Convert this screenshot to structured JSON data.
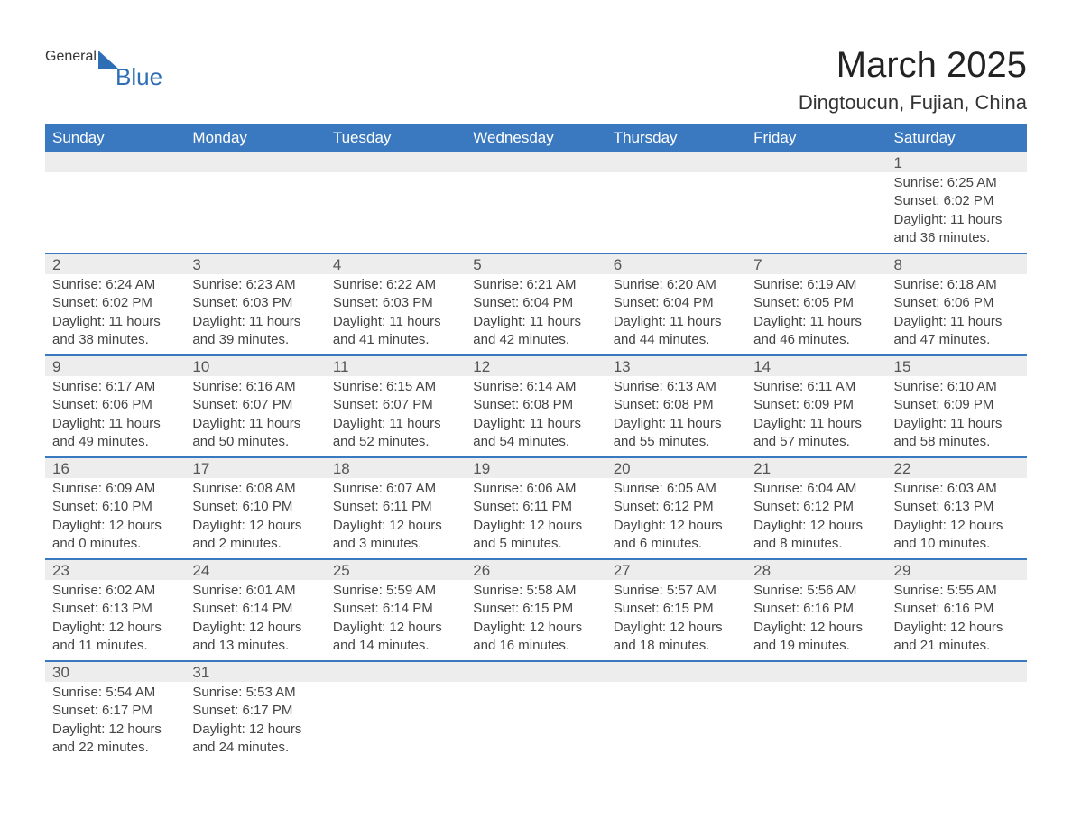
{
  "logo": {
    "general": "General",
    "blue": "Blue"
  },
  "title": {
    "month": "March 2025",
    "location": "Dingtoucun, Fujian, China"
  },
  "colors": {
    "header_bg": "#3a78c0",
    "header_text": "#ffffff",
    "numrow_bg": "#ededed",
    "border": "#3a78c0",
    "body_text": "#444444",
    "logo_blue": "#2e6eb5"
  },
  "daysOfWeek": [
    "Sunday",
    "Monday",
    "Tuesday",
    "Wednesday",
    "Thursday",
    "Friday",
    "Saturday"
  ],
  "calendar": {
    "firstDayOffset": 6,
    "days": [
      {
        "n": 1,
        "sr": "6:25 AM",
        "ss": "6:02 PM",
        "dl": "11 hours and 36 minutes."
      },
      {
        "n": 2,
        "sr": "6:24 AM",
        "ss": "6:02 PM",
        "dl": "11 hours and 38 minutes."
      },
      {
        "n": 3,
        "sr": "6:23 AM",
        "ss": "6:03 PM",
        "dl": "11 hours and 39 minutes."
      },
      {
        "n": 4,
        "sr": "6:22 AM",
        "ss": "6:03 PM",
        "dl": "11 hours and 41 minutes."
      },
      {
        "n": 5,
        "sr": "6:21 AM",
        "ss": "6:04 PM",
        "dl": "11 hours and 42 minutes."
      },
      {
        "n": 6,
        "sr": "6:20 AM",
        "ss": "6:04 PM",
        "dl": "11 hours and 44 minutes."
      },
      {
        "n": 7,
        "sr": "6:19 AM",
        "ss": "6:05 PM",
        "dl": "11 hours and 46 minutes."
      },
      {
        "n": 8,
        "sr": "6:18 AM",
        "ss": "6:06 PM",
        "dl": "11 hours and 47 minutes."
      },
      {
        "n": 9,
        "sr": "6:17 AM",
        "ss": "6:06 PM",
        "dl": "11 hours and 49 minutes."
      },
      {
        "n": 10,
        "sr": "6:16 AM",
        "ss": "6:07 PM",
        "dl": "11 hours and 50 minutes."
      },
      {
        "n": 11,
        "sr": "6:15 AM",
        "ss": "6:07 PM",
        "dl": "11 hours and 52 minutes."
      },
      {
        "n": 12,
        "sr": "6:14 AM",
        "ss": "6:08 PM",
        "dl": "11 hours and 54 minutes."
      },
      {
        "n": 13,
        "sr": "6:13 AM",
        "ss": "6:08 PM",
        "dl": "11 hours and 55 minutes."
      },
      {
        "n": 14,
        "sr": "6:11 AM",
        "ss": "6:09 PM",
        "dl": "11 hours and 57 minutes."
      },
      {
        "n": 15,
        "sr": "6:10 AM",
        "ss": "6:09 PM",
        "dl": "11 hours and 58 minutes."
      },
      {
        "n": 16,
        "sr": "6:09 AM",
        "ss": "6:10 PM",
        "dl": "12 hours and 0 minutes."
      },
      {
        "n": 17,
        "sr": "6:08 AM",
        "ss": "6:10 PM",
        "dl": "12 hours and 2 minutes."
      },
      {
        "n": 18,
        "sr": "6:07 AM",
        "ss": "6:11 PM",
        "dl": "12 hours and 3 minutes."
      },
      {
        "n": 19,
        "sr": "6:06 AM",
        "ss": "6:11 PM",
        "dl": "12 hours and 5 minutes."
      },
      {
        "n": 20,
        "sr": "6:05 AM",
        "ss": "6:12 PM",
        "dl": "12 hours and 6 minutes."
      },
      {
        "n": 21,
        "sr": "6:04 AM",
        "ss": "6:12 PM",
        "dl": "12 hours and 8 minutes."
      },
      {
        "n": 22,
        "sr": "6:03 AM",
        "ss": "6:13 PM",
        "dl": "12 hours and 10 minutes."
      },
      {
        "n": 23,
        "sr": "6:02 AM",
        "ss": "6:13 PM",
        "dl": "12 hours and 11 minutes."
      },
      {
        "n": 24,
        "sr": "6:01 AM",
        "ss": "6:14 PM",
        "dl": "12 hours and 13 minutes."
      },
      {
        "n": 25,
        "sr": "5:59 AM",
        "ss": "6:14 PM",
        "dl": "12 hours and 14 minutes."
      },
      {
        "n": 26,
        "sr": "5:58 AM",
        "ss": "6:15 PM",
        "dl": "12 hours and 16 minutes."
      },
      {
        "n": 27,
        "sr": "5:57 AM",
        "ss": "6:15 PM",
        "dl": "12 hours and 18 minutes."
      },
      {
        "n": 28,
        "sr": "5:56 AM",
        "ss": "6:16 PM",
        "dl": "12 hours and 19 minutes."
      },
      {
        "n": 29,
        "sr": "5:55 AM",
        "ss": "6:16 PM",
        "dl": "12 hours and 21 minutes."
      },
      {
        "n": 30,
        "sr": "5:54 AM",
        "ss": "6:17 PM",
        "dl": "12 hours and 22 minutes."
      },
      {
        "n": 31,
        "sr": "5:53 AM",
        "ss": "6:17 PM",
        "dl": "12 hours and 24 minutes."
      }
    ]
  },
  "labels": {
    "sunrise": "Sunrise: ",
    "sunset": "Sunset: ",
    "daylight": "Daylight: "
  }
}
